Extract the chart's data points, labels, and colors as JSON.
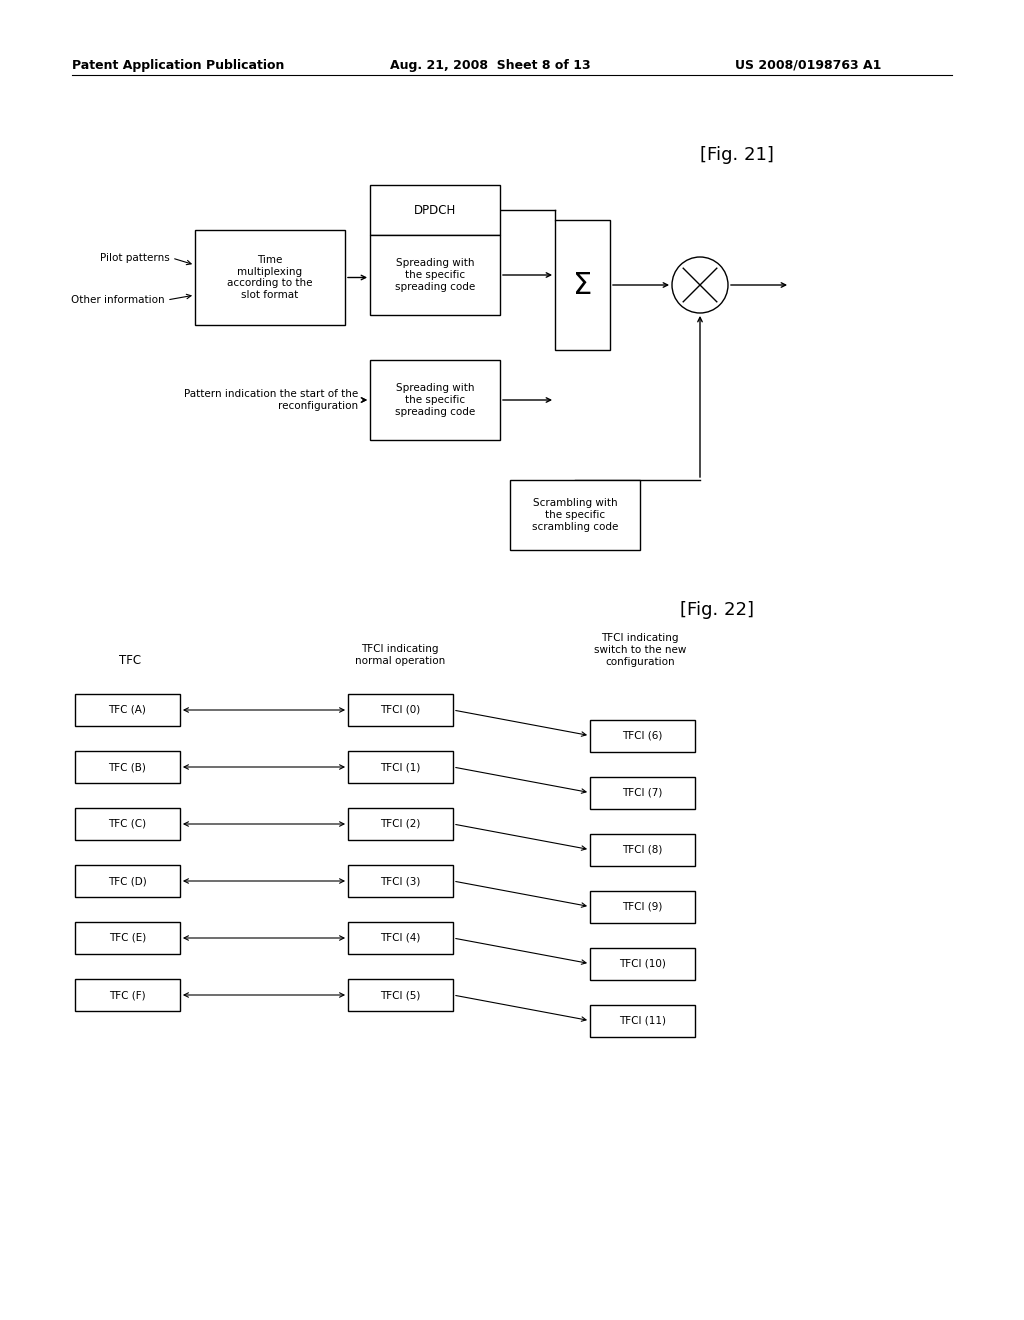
{
  "background_color": "#ffffff",
  "header_text": "Patent Application Publication",
  "header_date": "Aug. 21, 2008  Sheet 8 of 13",
  "header_patent": "US 2008/0198763 A1",
  "fig21_label": "[Fig. 21]",
  "fig22_label": "[Fig. 22]",
  "fig22_tfc_labels": [
    "TFC (A)",
    "TFC (B)",
    "TFC (C)",
    "TFC (D)",
    "TFC (E)",
    "TFC (F)"
  ],
  "fig22_tfci_labels": [
    "TFCI (0)",
    "TFCI (1)",
    "TFCI (2)",
    "TFCI (3)",
    "TFCI (4)",
    "TFCI (5)"
  ],
  "fig22_tfci_right_labels": [
    "TFCI (6)",
    "TFCI (7)",
    "TFCI (8)",
    "TFCI (9)",
    "TFCI (10)",
    "TFCI (11)"
  ]
}
